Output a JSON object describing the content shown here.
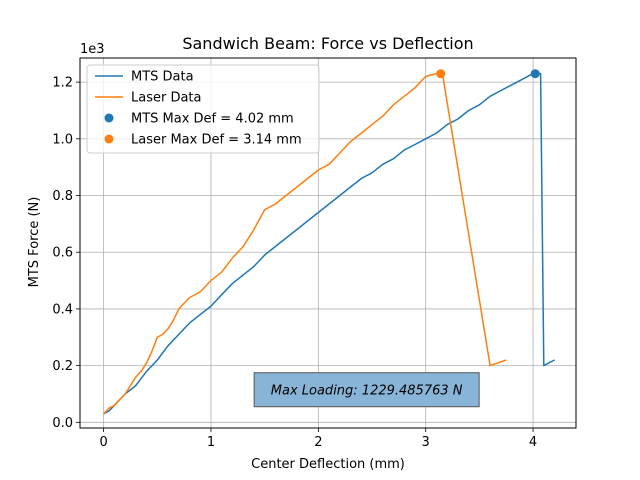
{
  "chart_data": {
    "type": "line",
    "title": "Sandwich Beam: Force vs Deflection",
    "xlabel": "Center Deflection (mm)",
    "ylabel": "MTS Force (N)",
    "y_multiplier_label": "1e3",
    "xlim": [
      -0.22,
      4.4
    ],
    "ylim": [
      -0.02,
      1.285
    ],
    "xticks": [
      0,
      1,
      2,
      3,
      4
    ],
    "yticks": [
      0.0,
      0.2,
      0.4,
      0.6,
      0.8,
      1.0,
      1.2
    ],
    "ytick_labels": [
      "0.0",
      "0.2",
      "0.4",
      "0.6",
      "0.8",
      "1.0",
      "1.2"
    ],
    "grid": true,
    "legend_placement": "top-left",
    "series": [
      {
        "name": "MTS Data",
        "color": "#1f77b4",
        "x": [
          0.0,
          0.05,
          0.1,
          0.15,
          0.2,
          0.3,
          0.4,
          0.5,
          0.6,
          0.7,
          0.8,
          0.9,
          1.0,
          1.1,
          1.2,
          1.3,
          1.4,
          1.5,
          1.6,
          1.7,
          1.8,
          1.9,
          2.0,
          2.1,
          2.2,
          2.3,
          2.4,
          2.5,
          2.6,
          2.7,
          2.8,
          2.9,
          3.0,
          3.1,
          3.2,
          3.3,
          3.4,
          3.5,
          3.6,
          3.7,
          3.8,
          3.9,
          4.0,
          4.02,
          4.05,
          4.07,
          4.1,
          4.2
        ],
        "y": [
          0.03,
          0.04,
          0.06,
          0.08,
          0.1,
          0.13,
          0.18,
          0.22,
          0.27,
          0.31,
          0.35,
          0.38,
          0.41,
          0.45,
          0.49,
          0.52,
          0.55,
          0.59,
          0.62,
          0.65,
          0.68,
          0.71,
          0.74,
          0.77,
          0.8,
          0.83,
          0.86,
          0.88,
          0.91,
          0.93,
          0.96,
          0.98,
          1.0,
          1.02,
          1.05,
          1.07,
          1.1,
          1.12,
          1.15,
          1.17,
          1.19,
          1.21,
          1.23,
          1.2295,
          1.23,
          1.23,
          0.2,
          0.22
        ]
      },
      {
        "name": "Laser Data",
        "color": "#ff7f0e",
        "x": [
          0.0,
          0.05,
          0.1,
          0.15,
          0.2,
          0.25,
          0.3,
          0.35,
          0.4,
          0.45,
          0.5,
          0.55,
          0.6,
          0.65,
          0.7,
          0.75,
          0.8,
          0.9,
          1.0,
          1.1,
          1.2,
          1.3,
          1.4,
          1.5,
          1.6,
          1.7,
          1.8,
          1.9,
          2.0,
          2.1,
          2.2,
          2.3,
          2.4,
          2.5,
          2.6,
          2.7,
          2.8,
          2.9,
          3.0,
          3.1,
          3.14,
          3.16,
          3.6,
          3.75
        ],
        "y": [
          0.03,
          0.05,
          0.06,
          0.08,
          0.1,
          0.13,
          0.16,
          0.18,
          0.21,
          0.25,
          0.3,
          0.31,
          0.33,
          0.36,
          0.4,
          0.42,
          0.44,
          0.46,
          0.5,
          0.53,
          0.58,
          0.62,
          0.68,
          0.75,
          0.77,
          0.8,
          0.83,
          0.86,
          0.89,
          0.91,
          0.95,
          0.99,
          1.02,
          1.05,
          1.08,
          1.12,
          1.15,
          1.18,
          1.22,
          1.23,
          1.2295,
          1.22,
          0.2,
          0.22
        ]
      }
    ],
    "points": [
      {
        "name": "MTS Max Def = 4.02 mm",
        "color": "#1f77b4",
        "x": 4.02,
        "y": 1.2295
      },
      {
        "name": "Laser Max Def = 3.14 mm",
        "color": "#ff7f0e",
        "x": 3.14,
        "y": 1.2295
      }
    ],
    "annotation": {
      "text": "Max Loading: 1229.485763 N",
      "x": 2.45,
      "y": 0.115,
      "box_color": "#88b4d8"
    }
  }
}
